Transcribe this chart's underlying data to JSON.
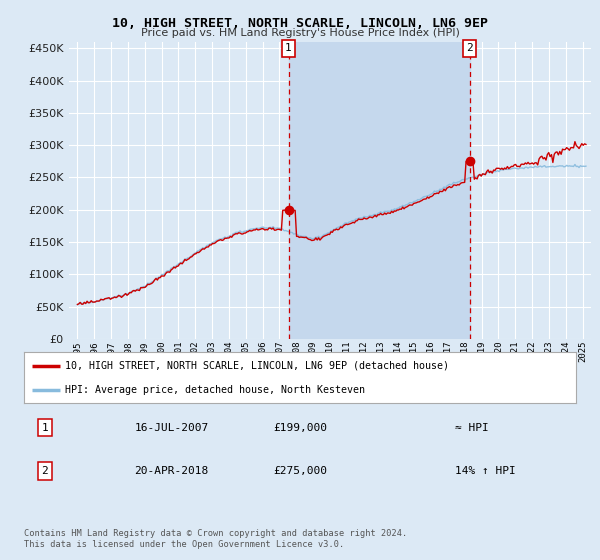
{
  "title": "10, HIGH STREET, NORTH SCARLE, LINCOLN, LN6 9EP",
  "subtitle": "Price paid vs. HM Land Registry's House Price Index (HPI)",
  "background_color": "#dce9f5",
  "plot_bg_color": "#dce9f5",
  "grid_color": "#ffffff",
  "hpi_line_color": "#88bbdd",
  "price_line_color": "#cc0000",
  "shade_color": "#c5d8ed",
  "marker1_x": 2007.54,
  "marker1_y": 199000,
  "marker2_x": 2018.3,
  "marker2_y": 275000,
  "marker_color": "#cc0000",
  "dashed_line_color": "#cc0000",
  "legend_label1": "10, HIGH STREET, NORTH SCARLE, LINCOLN, LN6 9EP (detached house)",
  "legend_label2": "HPI: Average price, detached house, North Kesteven",
  "table_row1_label": "1",
  "table_row1_date": "16-JUL-2007",
  "table_row1_price": "£199,000",
  "table_row1_hpi": "≈ HPI",
  "table_row2_label": "2",
  "table_row2_date": "20-APR-2018",
  "table_row2_price": "£275,000",
  "table_row2_hpi": "14% ↑ HPI",
  "footer": "Contains HM Land Registry data © Crown copyright and database right 2024.\nThis data is licensed under the Open Government Licence v3.0.",
  "ylim": [
    0,
    460000
  ],
  "yticks": [
    0,
    50000,
    100000,
    150000,
    200000,
    250000,
    300000,
    350000,
    400000,
    450000
  ],
  "xlim_start": 1994.5,
  "xlim_end": 2025.5
}
